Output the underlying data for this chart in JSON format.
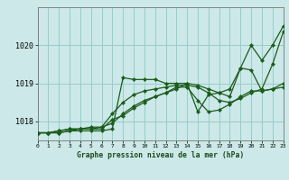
{
  "xlabel": "Graphe pression niveau de la mer (hPa)",
  "background_color": "#cce8e8",
  "grid_color": "#99cccc",
  "line_color": "#1a5c1a",
  "ylim": [
    1017.5,
    1021.0
  ],
  "xlim": [
    0,
    23
  ],
  "yticks": [
    1018,
    1019,
    1020
  ],
  "ytick_labels": [
    "1018",
    "1019",
    "1020"
  ],
  "x_ticks": [
    0,
    1,
    2,
    3,
    4,
    5,
    6,
    7,
    8,
    9,
    10,
    11,
    12,
    13,
    14,
    15,
    16,
    17,
    18,
    19,
    20,
    21,
    22,
    23
  ],
  "series": [
    [
      1017.7,
      1017.7,
      1017.7,
      1017.75,
      1017.75,
      1017.75,
      1017.75,
      1017.8,
      1019.15,
      1019.1,
      1019.1,
      1019.1,
      1019.0,
      1019.0,
      1019.0,
      1018.25,
      1018.7,
      1018.75,
      1018.85,
      1019.4,
      1020.0,
      1019.6,
      1020.0,
      1020.5
    ],
    [
      1017.7,
      1017.7,
      1017.75,
      1017.8,
      1017.8,
      1017.8,
      1017.8,
      1018.05,
      1018.15,
      1018.35,
      1018.5,
      1018.65,
      1018.75,
      1018.9,
      1018.9,
      1018.55,
      1018.25,
      1018.3,
      1018.45,
      1018.65,
      1018.8,
      1018.8,
      1018.85,
      1018.9
    ],
    [
      1017.7,
      1017.7,
      1017.75,
      1017.8,
      1017.8,
      1017.85,
      1017.85,
      1017.95,
      1018.2,
      1018.4,
      1018.55,
      1018.65,
      1018.75,
      1018.85,
      1019.0,
      1018.95,
      1018.85,
      1018.75,
      1018.65,
      1019.4,
      1019.35,
      1018.8,
      1018.85,
      1019.0
    ],
    [
      1017.7,
      1017.7,
      1017.7,
      1017.75,
      1017.8,
      1017.8,
      1017.85,
      1018.2,
      1018.5,
      1018.7,
      1018.8,
      1018.85,
      1018.9,
      1018.95,
      1018.95,
      1018.9,
      1018.75,
      1018.55,
      1018.5,
      1018.6,
      1018.75,
      1018.85,
      1019.5,
      1020.35
    ]
  ]
}
